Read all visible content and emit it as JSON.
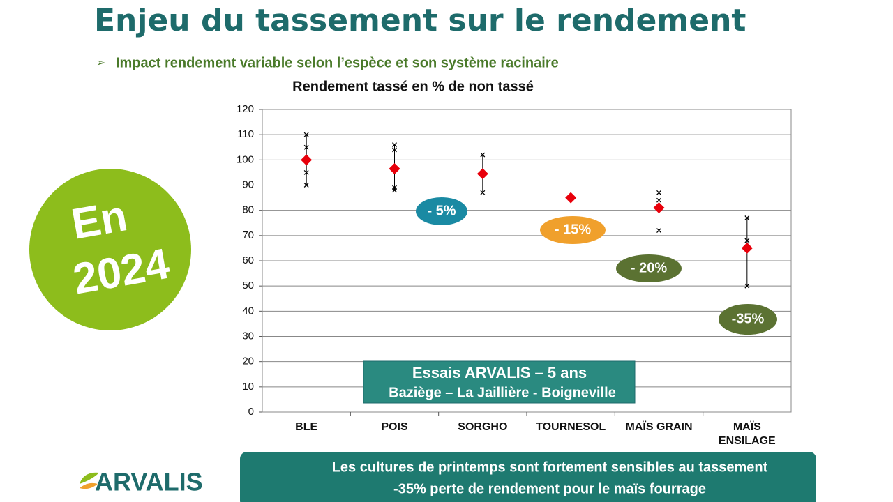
{
  "header": {
    "title": "Enjeu du tassement sur le rendement",
    "subtitle": "Impact rendement variable selon l’espèce et son système racinaire"
  },
  "badge": {
    "line1": "En",
    "line2": "2024"
  },
  "chart_data": {
    "type": "scatter",
    "title": "Rendement tassé en % de non tassé",
    "categories": [
      "BLE",
      "POIS",
      "SORGHO",
      "TOURNESOL",
      "MAÏS GRAIN",
      "MAÏS ENSILAGE"
    ],
    "series": [
      {
        "color": "#e8000b",
        "values": [
          100,
          96.5,
          94.5,
          85,
          81,
          65
        ]
      }
    ],
    "trials": [
      [
        110,
        105,
        95,
        90
      ],
      [
        106,
        104,
        89,
        88
      ],
      [
        102,
        87
      ],
      [],
      [
        87,
        84,
        72
      ],
      [
        77,
        68,
        50
      ]
    ],
    "ylim": [
      0,
      120
    ],
    "yticks": [
      0,
      10,
      20,
      30,
      40,
      50,
      60,
      70,
      80,
      90,
      100,
      110,
      120
    ],
    "grid": true,
    "annotations": [
      {
        "text": "- 5%",
        "color": "#1a8aa3"
      },
      {
        "text": "- 15%",
        "color": "#f0a02c"
      },
      {
        "text": "- 20%",
        "color": "#5b7232"
      },
      {
        "text": "-35%",
        "color": "#5b7232"
      }
    ],
    "note": {
      "line1": "Essais ARVALIS – 5 ans",
      "line2": "Baziège – La Jaillière - Boigneville"
    }
  },
  "footer": {
    "line1": "Les cultures de printemps sont fortement sensibles au tassement",
    "line2": "-35% perte de rendement pour le maïs fourrage"
  },
  "logo": "ARVALIS"
}
